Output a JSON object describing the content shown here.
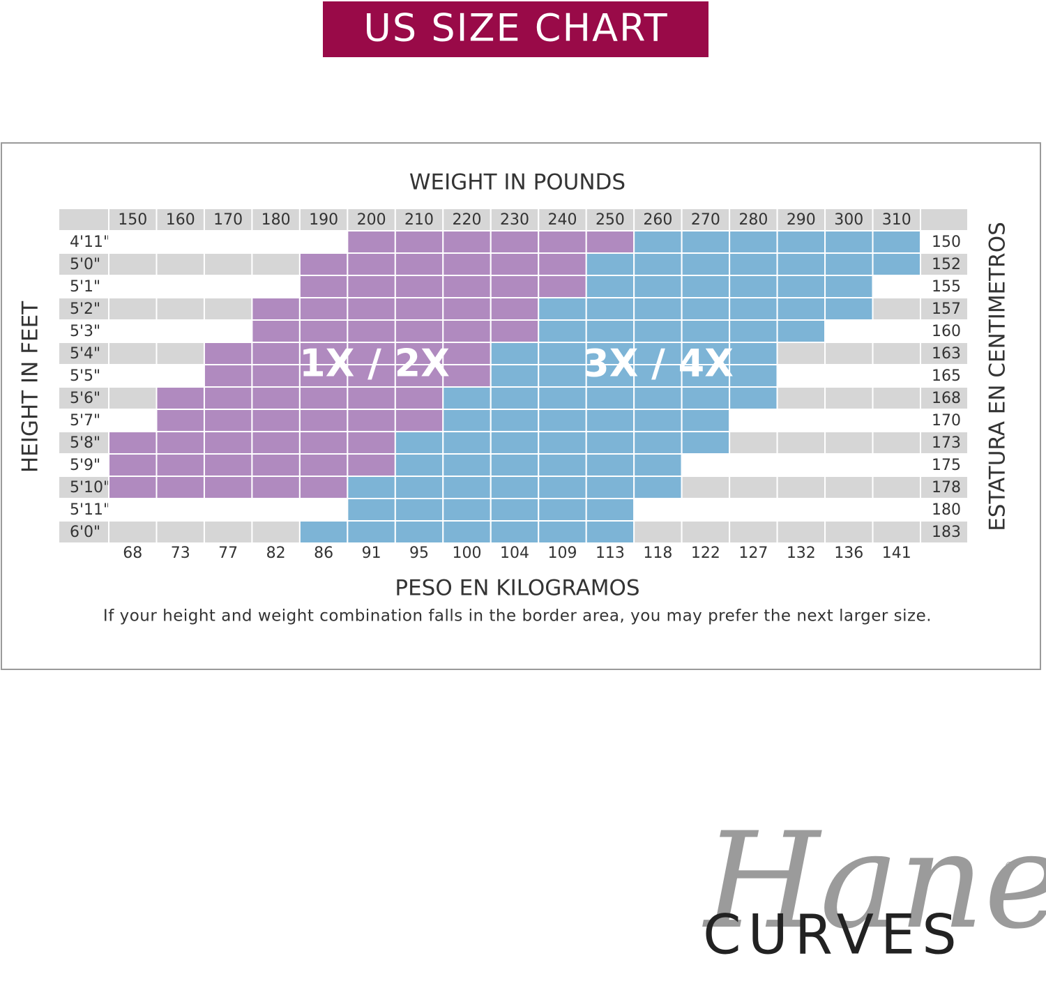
{
  "header": {
    "title": "US SIZE CHART"
  },
  "table": {
    "top_label": "WEIGHT IN POUNDS",
    "bottom_label": "PESO EN KILOGRAMOS",
    "left_label": "HEIGHT IN FEET",
    "right_label": "ESTATURA EN CENTIMETROS",
    "note": "If your height and weight combination falls in the border area, you may prefer the next larger size.",
    "pounds": [
      150,
      160,
      170,
      180,
      190,
      200,
      210,
      220,
      230,
      240,
      250,
      260,
      270,
      280,
      290,
      300,
      310
    ],
    "kilograms": [
      68,
      73,
      77,
      82,
      86,
      91,
      95,
      100,
      104,
      109,
      113,
      118,
      122,
      127,
      132,
      136,
      141
    ],
    "heights": [
      "4'11\"",
      "5'0\"",
      "5'1\"",
      "5'2\"",
      "5'3\"",
      "5'4\"",
      "5'5\"",
      "5'6\"",
      "5'7\"",
      "5'8\"",
      "5'9\"",
      "5'10\"",
      "5'11\"",
      "6'0\""
    ],
    "centimeters": [
      150,
      152,
      155,
      157,
      160,
      163,
      165,
      168,
      170,
      173,
      175,
      178,
      180,
      183
    ],
    "sizes": [
      {
        "label": "1X / 2X",
        "color": "#b08abf",
        "rows": [
          [
            200,
            250
          ],
          [
            190,
            240
          ],
          [
            190,
            240
          ],
          [
            180,
            230
          ],
          [
            180,
            230
          ],
          [
            170,
            220
          ],
          [
            170,
            220
          ],
          [
            160,
            210
          ],
          [
            160,
            210
          ],
          [
            150,
            200
          ],
          [
            150,
            200
          ],
          [
            150,
            190
          ],
          null,
          null
        ]
      },
      {
        "label": "3X / 4X",
        "color": "#7db4d6",
        "rows": [
          [
            260,
            310
          ],
          [
            250,
            310
          ],
          [
            250,
            300
          ],
          [
            240,
            300
          ],
          [
            240,
            290
          ],
          [
            230,
            280
          ],
          [
            230,
            280
          ],
          [
            220,
            280
          ],
          [
            220,
            270
          ],
          [
            210,
            270
          ],
          [
            210,
            260
          ],
          [
            200,
            260
          ],
          [
            200,
            250
          ],
          [
            190,
            250
          ]
        ]
      }
    ]
  },
  "logo": {
    "brand": "Hanes",
    "mark": "®",
    "line": "CURVES"
  }
}
